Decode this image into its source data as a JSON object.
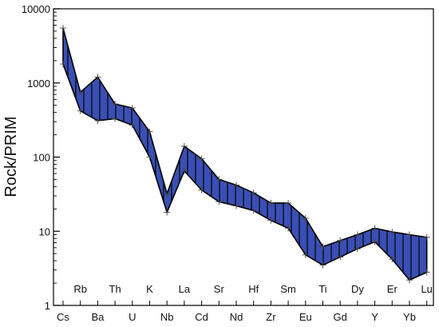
{
  "chart_data": {
    "type": "area",
    "ylabel": "Rock/PRIM",
    "yscale": "log",
    "ylim": [
      1,
      10000
    ],
    "yticks": [
      1,
      10,
      100,
      1000,
      10000
    ],
    "ytick_labels": [
      "1",
      "10",
      "100",
      "1000",
      "10000"
    ],
    "grid": false,
    "colors": {
      "fill": "#3a4fb4",
      "outline": "#000000",
      "hatch": "#000000",
      "marker": "#333333"
    },
    "categories": [
      "Cs",
      "Rb",
      "Ba",
      "Th",
      "U",
      "K",
      "Nb",
      "La",
      "Cd",
      "Sr",
      "Nd",
      "Hf",
      "Zr",
      "Sm",
      "Eu",
      "Ti",
      "Gd",
      "Dy",
      "Y",
      "Er",
      "Yb",
      "Lu"
    ],
    "categories_bottom": [
      "Cs",
      "Ba",
      "U",
      "Nb",
      "Cd",
      "Nd",
      "Zr",
      "Eu",
      "Gd",
      "Y",
      "Yb"
    ],
    "categories_top": [
      "Rb",
      "Th",
      "K",
      "La",
      "Sr",
      "Hf",
      "Sm",
      "Ti",
      "Dy",
      "Er",
      "Lu"
    ],
    "series": [
      {
        "values": [
          5500,
          750,
          1200,
          520,
          460,
          220,
          32,
          140,
          95,
          50,
          42,
          33,
          24,
          24,
          15,
          6.2,
          7.5,
          9.0,
          11,
          9.8,
          9.0,
          8.3
        ]
      },
      {
        "values": [
          1800,
          420,
          310,
          330,
          270,
          100,
          18,
          65,
          36,
          25,
          22,
          19,
          14,
          11,
          4.8,
          3.5,
          4.5,
          5.8,
          7.2,
          4.2,
          2.2,
          2.8
        ]
      }
    ]
  }
}
